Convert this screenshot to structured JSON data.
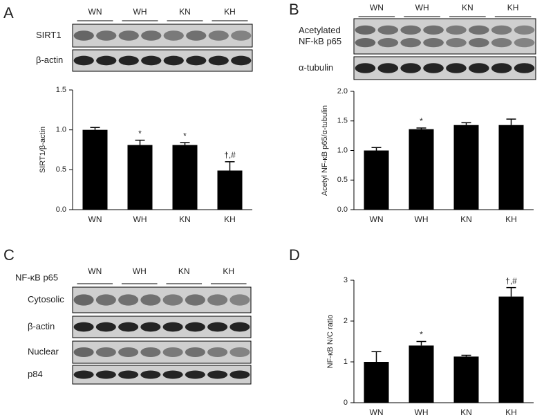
{
  "chart_data": [
    {
      "type": "bar",
      "label": "A",
      "ylabel": "SIRT1/β-actin",
      "categories": [
        "WN",
        "WH",
        "KN",
        "KH"
      ],
      "values": [
        1.0,
        0.81,
        0.81,
        0.49
      ],
      "errors": [
        0.03,
        0.06,
        0.03,
        0.11
      ],
      "annotations": [
        null,
        "*",
        "*",
        "†,#"
      ],
      "color": "#000000",
      "ylim": [
        0,
        1.5
      ],
      "yticks": [
        {
          "value": 0,
          "label": "0.0"
        },
        {
          "value": 0.5,
          "label": "0.5"
        },
        {
          "value": 1,
          "label": "1.0"
        },
        {
          "value": 1.5,
          "label": "1.5"
        }
      ]
    },
    {
      "type": "bar",
      "label": "B",
      "ylabel": "Acetyl NF-κB p65/α-tubulin",
      "categories": [
        "WN",
        "WH",
        "KN",
        "KH"
      ],
      "values": [
        1.0,
        1.36,
        1.43,
        1.43
      ],
      "errors": [
        0.05,
        0.02,
        0.04,
        0.1
      ],
      "annotations": [
        null,
        "*",
        null,
        null
      ],
      "color": "#000000",
      "ylim": [
        0,
        2
      ],
      "yticks": [
        {
          "value": 0,
          "label": "0.0"
        },
        {
          "value": 0.5,
          "label": "0.5"
        },
        {
          "value": 1,
          "label": "1.0"
        },
        {
          "value": 1.5,
          "label": "1.5"
        },
        {
          "value": 2,
          "label": "2.0"
        }
      ]
    },
    {
      "type": "bar",
      "label": "D",
      "ylabel": "NF-κB N/C ratio",
      "categories": [
        "WN",
        "WH",
        "KN",
        "KH"
      ],
      "values": [
        1.0,
        1.4,
        1.13,
        2.6
      ],
      "errors": [
        0.25,
        0.1,
        0.03,
        0.22
      ],
      "annotations": [
        null,
        "*",
        null,
        "†,#"
      ],
      "color": "#000000",
      "ylim": [
        0,
        3
      ],
      "yticks": [
        0,
        1,
        2,
        3
      ]
    }
  ],
  "blots": {
    "A": {
      "groups": [
        "WN",
        "WH",
        "KN",
        "KH"
      ],
      "rows": [
        [
          "SIRT1"
        ],
        [
          "β-actin"
        ]
      ]
    },
    "B": {
      "groups": [
        "WN",
        "WH",
        "KN",
        "KH"
      ],
      "rows": [
        [
          "Acetylated",
          "NF-kB p65"
        ],
        [
          "α-tubulin"
        ]
      ]
    },
    "C": {
      "letter": "C",
      "header": "NF-κB p65",
      "groups": [
        "WN",
        "WH",
        "KN",
        "KH"
      ],
      "rows": [
        [
          "Cytosolic"
        ],
        [
          "β-actin"
        ],
        [
          "Nuclear"
        ],
        [
          "p84"
        ]
      ]
    }
  }
}
